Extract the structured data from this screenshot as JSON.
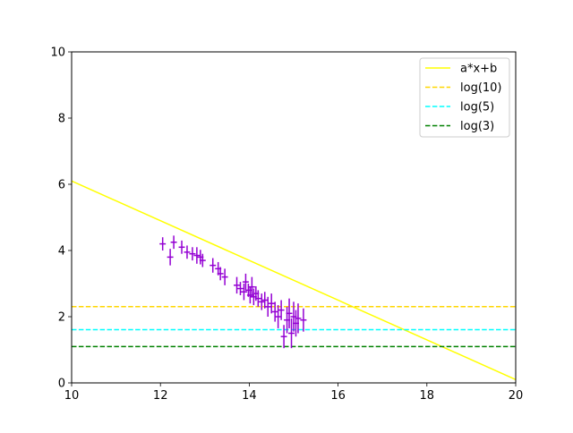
{
  "chart_data": {
    "type": "scatter",
    "title": "",
    "xlabel": "",
    "ylabel": "",
    "xlim": [
      10,
      20
    ],
    "ylim": [
      0,
      10
    ],
    "xticks": [
      "10",
      "12",
      "14",
      "16",
      "18",
      "20"
    ],
    "yticks": [
      "0",
      "2",
      "4",
      "6",
      "8",
      "10"
    ],
    "grid": false,
    "legend_position": "top-right",
    "fit_line": {
      "name": "a*x+b",
      "slope": -0.6,
      "intercept": 12.1,
      "color": "#ffff00"
    },
    "hlines": [
      {
        "name": "log(10)",
        "y": 2.3026,
        "color": "#ffd700",
        "style": "dashed"
      },
      {
        "name": "log(5)",
        "y": 1.6094,
        "color": "#00ffff",
        "style": "dashed"
      },
      {
        "name": "log(3)",
        "y": 1.0986,
        "color": "#008000",
        "style": "dashed"
      }
    ],
    "data_series": {
      "color": "#9400d3",
      "xerr": 0.07,
      "points": [
        {
          "x": 12.05,
          "y": 4.2,
          "yerr": 0.2
        },
        {
          "x": 12.22,
          "y": 3.8,
          "yerr": 0.25
        },
        {
          "x": 12.3,
          "y": 4.25,
          "yerr": 0.2
        },
        {
          "x": 12.48,
          "y": 4.1,
          "yerr": 0.2
        },
        {
          "x": 12.6,
          "y": 3.95,
          "yerr": 0.2
        },
        {
          "x": 12.72,
          "y": 3.9,
          "yerr": 0.2
        },
        {
          "x": 12.82,
          "y": 3.85,
          "yerr": 0.25
        },
        {
          "x": 12.9,
          "y": 3.8,
          "yerr": 0.22
        },
        {
          "x": 12.95,
          "y": 3.7,
          "yerr": 0.2
        },
        {
          "x": 13.18,
          "y": 3.55,
          "yerr": 0.22
        },
        {
          "x": 13.3,
          "y": 3.45,
          "yerr": 0.2
        },
        {
          "x": 13.35,
          "y": 3.3,
          "yerr": 0.2
        },
        {
          "x": 13.45,
          "y": 3.2,
          "yerr": 0.25
        },
        {
          "x": 13.72,
          "y": 2.95,
          "yerr": 0.25
        },
        {
          "x": 13.8,
          "y": 2.85,
          "yerr": 0.2
        },
        {
          "x": 13.88,
          "y": 2.75,
          "yerr": 0.25
        },
        {
          "x": 13.92,
          "y": 3.05,
          "yerr": 0.25
        },
        {
          "x": 13.98,
          "y": 2.8,
          "yerr": 0.2
        },
        {
          "x": 14.02,
          "y": 2.65,
          "yerr": 0.25
        },
        {
          "x": 14.06,
          "y": 2.9,
          "yerr": 0.3
        },
        {
          "x": 14.1,
          "y": 2.6,
          "yerr": 0.25
        },
        {
          "x": 14.15,
          "y": 2.7,
          "yerr": 0.22
        },
        {
          "x": 14.2,
          "y": 2.55,
          "yerr": 0.25
        },
        {
          "x": 14.28,
          "y": 2.45,
          "yerr": 0.25
        },
        {
          "x": 14.35,
          "y": 2.5,
          "yerr": 0.25
        },
        {
          "x": 14.42,
          "y": 2.3,
          "yerr": 0.3
        },
        {
          "x": 14.5,
          "y": 2.4,
          "yerr": 0.3
        },
        {
          "x": 14.58,
          "y": 2.15,
          "yerr": 0.3
        },
        {
          "x": 14.65,
          "y": 2.0,
          "yerr": 0.35
        },
        {
          "x": 14.72,
          "y": 2.2,
          "yerr": 0.3
        },
        {
          "x": 14.78,
          "y": 1.4,
          "yerr": 0.35
        },
        {
          "x": 14.85,
          "y": 1.9,
          "yerr": 0.4
        },
        {
          "x": 14.9,
          "y": 2.1,
          "yerr": 0.45
        },
        {
          "x": 14.95,
          "y": 1.5,
          "yerr": 0.45
        },
        {
          "x": 15.0,
          "y": 2.0,
          "yerr": 0.45
        },
        {
          "x": 15.05,
          "y": 1.8,
          "yerr": 0.4
        },
        {
          "x": 15.1,
          "y": 1.95,
          "yerr": 0.45
        },
        {
          "x": 15.22,
          "y": 1.9,
          "yerr": 0.35
        }
      ]
    },
    "legend": [
      "a*x+b",
      "log(10)",
      "log(5)",
      "log(3)"
    ]
  }
}
